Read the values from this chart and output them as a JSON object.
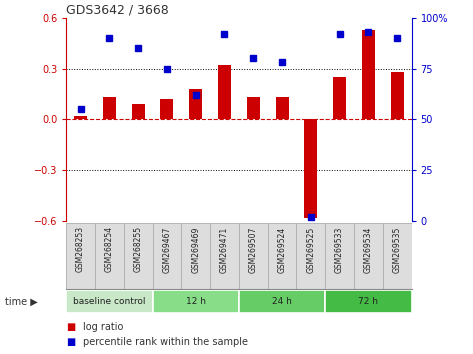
{
  "title": "GDS3642 / 3668",
  "samples": [
    "GSM268253",
    "GSM268254",
    "GSM268255",
    "GSM269467",
    "GSM269469",
    "GSM269471",
    "GSM269507",
    "GSM269524",
    "GSM269525",
    "GSM269533",
    "GSM269534",
    "GSM269535"
  ],
  "log_ratio": [
    0.02,
    0.13,
    0.09,
    0.12,
    0.18,
    0.32,
    0.13,
    0.13,
    -0.58,
    0.25,
    0.53,
    0.28
  ],
  "pct_rank": [
    55,
    90,
    85,
    75,
    62,
    92,
    80,
    78,
    2,
    92,
    93,
    90
  ],
  "ylim_left": [
    -0.6,
    0.6
  ],
  "yticks_left": [
    -0.6,
    -0.3,
    0.0,
    0.3,
    0.6
  ],
  "ylim_right": [
    0,
    100
  ],
  "yticks_right": [
    0,
    25,
    50,
    75,
    100
  ],
  "bar_color": "#cc0000",
  "dot_color": "#0000cc",
  "hline_color": "#cc0000",
  "grid_color": "#000000",
  "groups": [
    {
      "label": "baseline control",
      "start": 0,
      "end": 3,
      "color": "#c8e8c8"
    },
    {
      "label": "12 h",
      "start": 3,
      "end": 6,
      "color": "#88dd88"
    },
    {
      "label": "24 h",
      "start": 6,
      "end": 9,
      "color": "#66cc66"
    },
    {
      "label": "72 h",
      "start": 9,
      "end": 12,
      "color": "#44bb44"
    }
  ],
  "legend_items": [
    {
      "label": "log ratio",
      "color": "#cc0000"
    },
    {
      "label": "percentile rank within the sample",
      "color": "#0000cc"
    }
  ],
  "background_color": "#ffffff"
}
